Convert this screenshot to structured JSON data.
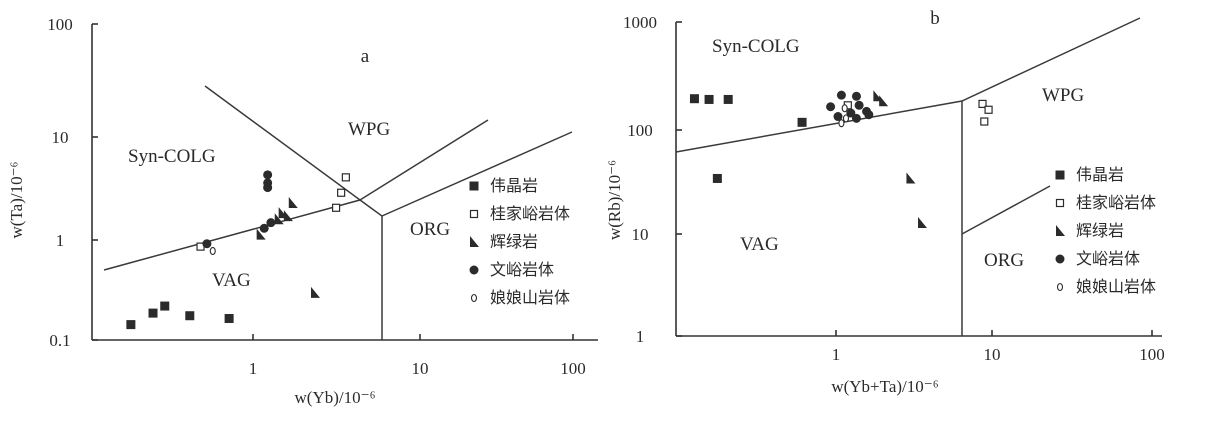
{
  "chart_data": [
    {
      "type": "scatter",
      "panel_label": "a",
      "xlabel": "w(Yb)/10⁻⁶",
      "ylabel": "w(Ta)/10⁻⁶",
      "log_x": true,
      "log_y": true,
      "xlim": [
        0.1,
        100
      ],
      "ylim": [
        0.1,
        100
      ],
      "x_ticks": [
        "1",
        "10",
        "100"
      ],
      "y_ticks": [
        "0.1",
        "1",
        "10",
        "100"
      ],
      "fields": [
        "Syn-COLG",
        "WPG",
        "VAG",
        "ORG"
      ],
      "series": [
        {
          "name": "伟晶岩",
          "marker": "filled-square",
          "points": [
            [
              0.17,
              0.14
            ],
            [
              0.23,
              0.18
            ],
            [
              0.27,
              0.21
            ],
            [
              0.38,
              0.17
            ],
            [
              0.65,
              0.16
            ]
          ]
        },
        {
          "name": "桂家峪岩体",
          "marker": "open-square",
          "points": [
            [
              3.2,
              3.5
            ],
            [
              3.0,
              2.5
            ],
            [
              2.8,
              1.8
            ],
            [
              0.44,
              0.77
            ]
          ]
        },
        {
          "name": "辉绿岩",
          "marker": "filled-triangle",
          "points": [
            [
              1.55,
              2.0
            ],
            [
              1.35,
              1.6
            ],
            [
              1.45,
              1.5
            ],
            [
              1.28,
              1.4
            ],
            [
              1.0,
              1.0
            ],
            [
              2.1,
              0.28
            ]
          ]
        },
        {
          "name": "文峪岩体",
          "marker": "filled-circle",
          "points": [
            [
              1.1,
              3.7
            ],
            [
              1.1,
              3.1
            ],
            [
              1.1,
              2.8
            ],
            [
              1.15,
              1.3
            ],
            [
              1.05,
              1.15
            ],
            [
              0.48,
              0.82
            ]
          ]
        },
        {
          "name": "娘娘山岩体",
          "marker": "small-open-circle",
          "points": [
            [
              0.52,
              0.7
            ]
          ]
        }
      ]
    },
    {
      "type": "scatter",
      "panel_label": "b",
      "xlabel": "w(Yb+Ta)/10⁻⁶",
      "ylabel": "w(Rb)/10⁻⁶",
      "log_x": true,
      "log_y": true,
      "xlim": [
        0.1,
        100
      ],
      "ylim": [
        1,
        1000
      ],
      "x_ticks": [
        "1",
        "10",
        "100"
      ],
      "y_ticks": [
        "1",
        "10",
        "100",
        "1000"
      ],
      "fields": [
        "Syn-COLG",
        "WPG",
        "VAG",
        "ORG"
      ],
      "series": [
        {
          "name": "伟晶岩",
          "marker": "filled-square",
          "points": [
            [
              0.13,
              185
            ],
            [
              0.16,
              182
            ],
            [
              0.21,
              182
            ],
            [
              0.6,
              110
            ],
            [
              0.18,
              32
            ]
          ]
        },
        {
          "name": "桂家峪岩体",
          "marker": "open-square",
          "points": [
            [
              7.8,
              165
            ],
            [
              8.5,
              145
            ],
            [
              8.0,
              112
            ],
            [
              1.15,
              160
            ]
          ]
        },
        {
          "name": "辉绿岩",
          "marker": "filled-triangle",
          "points": [
            [
              1.75,
              195
            ],
            [
              1.9,
              175
            ],
            [
              2.8,
              32
            ],
            [
              3.3,
              12
            ]
          ]
        },
        {
          "name": "文峪岩体",
          "marker": "filled-circle",
          "points": [
            [
              1.05,
              200
            ],
            [
              1.3,
              195
            ],
            [
              0.9,
              155
            ],
            [
              1.35,
              160
            ],
            [
              1.5,
              140
            ],
            [
              1.2,
              135
            ],
            [
              1.55,
              130
            ],
            [
              1.0,
              125
            ],
            [
              1.3,
              120
            ]
          ]
        },
        {
          "name": "娘娘山岩体",
          "marker": "small-open-circle",
          "points": [
            [
              1.1,
              150
            ],
            [
              1.12,
              120
            ],
            [
              1.05,
              108
            ]
          ]
        }
      ]
    }
  ]
}
